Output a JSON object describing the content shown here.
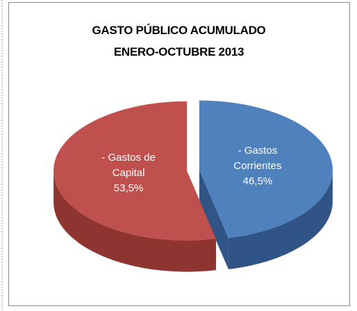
{
  "chart_data": {
    "type": "pie",
    "title": [
      "GASTO PÚBLICO ACUMULADO",
      "ENERO-OCTUBRE 2013"
    ],
    "categories": [
      "- Gastos Corrientes",
      "- Gastos de Capital"
    ],
    "values": [
      46.5,
      53.5
    ],
    "value_labels": [
      "46,5%",
      "53,5%"
    ],
    "colors": [
      "#4f81bd",
      "#c0504d"
    ],
    "side_colors": [
      "#2f5485",
      "#8e3532"
    ]
  }
}
